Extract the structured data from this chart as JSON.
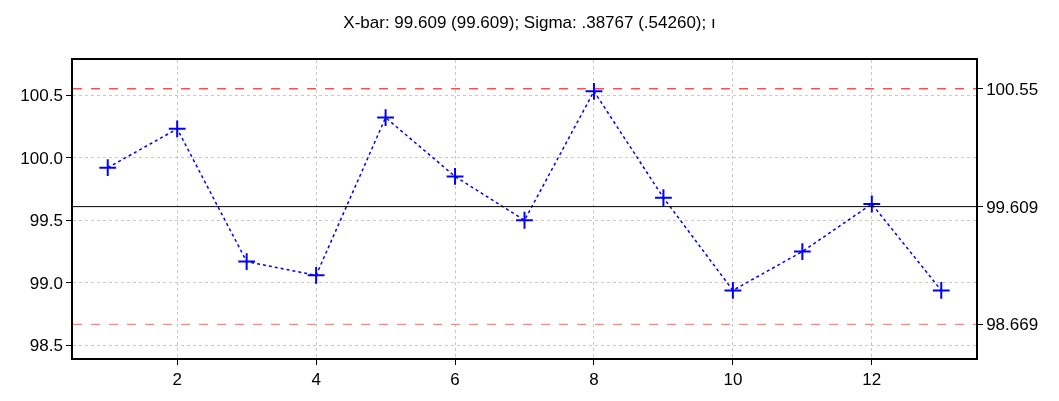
{
  "chart_data": {
    "type": "line",
    "title": "X-bar: 99.609 (99.609); Sigma: .38767 (.54260); ı",
    "x": [
      1,
      2,
      3,
      4,
      5,
      6,
      7,
      8,
      9,
      10,
      11,
      12,
      13
    ],
    "series": [
      {
        "color": "#0000ff",
        "values": [
          99.92,
          100.23,
          99.17,
          99.06,
          100.32,
          99.85,
          99.5,
          100.53,
          99.68,
          98.94,
          99.25,
          99.63,
          98.94
        ]
      }
    ],
    "xlim": [
      0.5,
      13.5
    ],
    "xticks": [
      2,
      4,
      6,
      8,
      10,
      12
    ],
    "ylim": [
      98.4,
      100.78
    ],
    "yticks": [
      {
        "value": 98.5,
        "label": "98.5"
      },
      {
        "value": 99,
        "label": "99.0"
      },
      {
        "value": 99.5,
        "label": "99.5"
      },
      {
        "value": 100,
        "label": "100.0"
      },
      {
        "value": 100.5,
        "label": "100.5"
      }
    ],
    "y2lim": [
      98.4,
      100.78
    ],
    "y2ticks": [
      {
        "value": 98.669,
        "label": "98.669"
      },
      {
        "value": 99.609,
        "label": "99.609"
      },
      {
        "value": 100.55,
        "label": "100.55"
      }
    ],
    "ref_lines": [
      {
        "axis": "y",
        "value": 100.55,
        "color": "#ff0000",
        "line_style": "dashed"
      },
      {
        "axis": "y",
        "value": 99.609,
        "color": "#000000",
        "line_style": "solid"
      },
      {
        "axis": "y",
        "value": 98.669,
        "color": "#f07070",
        "line_style": "dashed"
      }
    ],
    "grid": true,
    "marker": "cross",
    "line_style": "dotted"
  }
}
